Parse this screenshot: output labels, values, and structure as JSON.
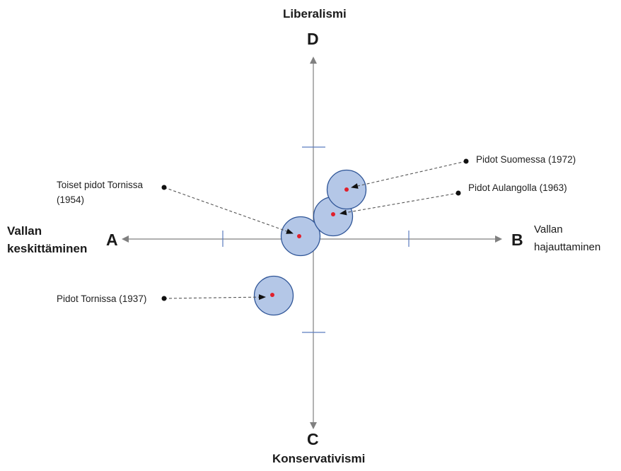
{
  "axes": {
    "top": {
      "letter": "D",
      "word": "Liberalismi"
    },
    "bottom": {
      "letter": "C",
      "word": "Konservativismi"
    },
    "left": {
      "letter": "A",
      "line1": "Vallan",
      "line2": "keskittäminen"
    },
    "right": {
      "letter": "B",
      "line1": "Vallan",
      "line2": "hajauttaminen"
    }
  },
  "annotations": {
    "suomessa": "Pidot Suomessa (1972)",
    "aulangolla": "Pidot Aulangolla (1963)",
    "tornissa2_line1": "Toiset pidot Tornissa",
    "tornissa2_line2": "(1954)",
    "tornissa": "Pidot Tornissa (1937)"
  },
  "colors": {
    "axis": "#808080",
    "tick": "#5b7cbf",
    "circle_fill": "#b4c7e7",
    "circle_stroke": "#2f5597",
    "center_dot": "#e0202c",
    "leader": "#555555"
  }
}
